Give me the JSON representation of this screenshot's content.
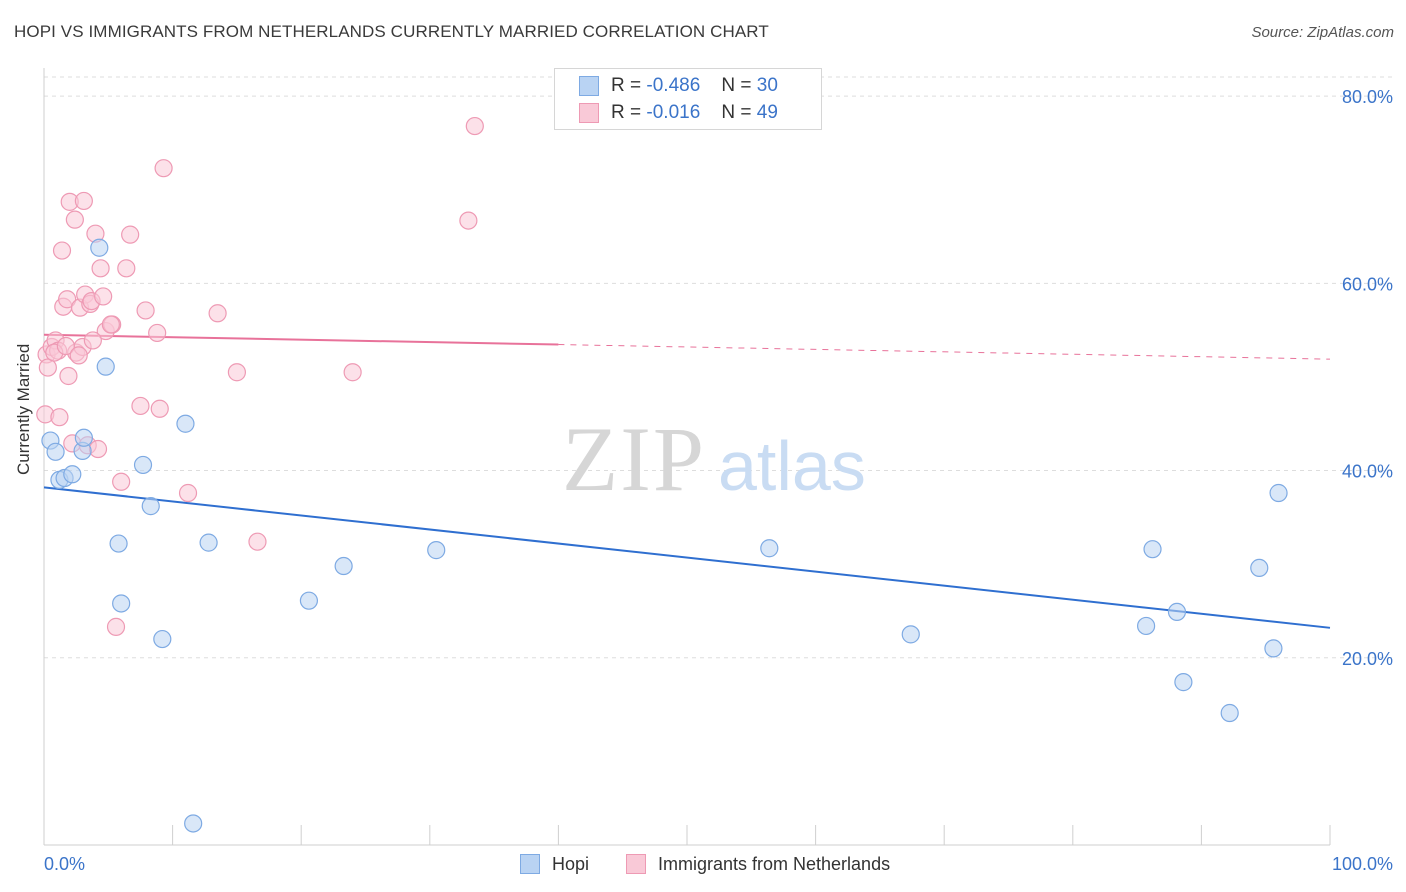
{
  "header": {
    "title": "HOPI VS IMMIGRANTS FROM NETHERLANDS CURRENTLY MARRIED CORRELATION CHART",
    "source": "Source: ZipAtlas.com"
  },
  "watermark": {
    "zip": "ZIP",
    "atlas": "atlas"
  },
  "legend_top": {
    "rows": [
      {
        "r_label": "R =",
        "r_value": "-0.486",
        "n_label": "N =",
        "n_value": "30",
        "color": "#a9c8f0",
        "border": "#7eaae3"
      },
      {
        "r_label": "R =",
        "r_value": "-0.016",
        "n_label": "N =",
        "n_value": "49",
        "color": "#f7c3d2",
        "border": "#ee9ab4"
      }
    ]
  },
  "chart_data": {
    "type": "scatter",
    "title": "HOPI VS IMMIGRANTS FROM NETHERLANDS CURRENTLY MARRIED CORRELATION CHART",
    "xlabel": "",
    "ylabel": "Currently Married",
    "xlim": [
      0,
      100
    ],
    "ylim": [
      0,
      83
    ],
    "x_tick_labels": [
      "0.0%",
      "100.0%"
    ],
    "y_ticks": [
      20,
      40,
      60,
      80
    ],
    "y_tick_labels": [
      "20.0%",
      "40.0%",
      "60.0%",
      "80.0%"
    ],
    "grid": true,
    "legend_position": "bottom",
    "series": [
      {
        "name": "Hopi",
        "color": "#7eaae3",
        "fill": "#b9d3f3",
        "line_color": "#2f6fd0",
        "trend": {
          "x": [
            0,
            100
          ],
          "y": [
            38.2,
            23.2
          ],
          "solid_until": 100
        },
        "x": [
          0.5,
          0.9,
          1.2,
          1.6,
          2.2,
          3.0,
          3.1,
          4.3,
          4.8,
          5.8,
          6.0,
          7.7,
          8.3,
          9.2,
          11.0,
          11.6,
          12.8,
          20.6,
          23.3,
          30.5,
          56.4,
          67.4,
          85.7,
          86.2,
          88.1,
          88.6,
          92.2,
          94.5,
          95.6,
          96.0
        ],
        "y": [
          43.2,
          42.0,
          39.0,
          39.2,
          39.6,
          42.1,
          43.5,
          63.8,
          51.1,
          32.2,
          25.8,
          40.6,
          36.2,
          22.0,
          45.0,
          2.3,
          32.3,
          26.1,
          29.8,
          31.5,
          31.7,
          22.5,
          23.4,
          31.6,
          24.9,
          17.4,
          14.1,
          29.6,
          21.0,
          37.6
        ]
      },
      {
        "name": "Immigrants from Netherlands",
        "color": "#ee9ab4",
        "fill": "#f9c9d7",
        "line_color": "#e8729a",
        "trend": {
          "x": [
            0,
            100
          ],
          "y": [
            54.5,
            51.9
          ],
          "solid_until": 40
        },
        "x": [
          0.1,
          0.2,
          0.3,
          0.6,
          0.9,
          1.1,
          1.2,
          1.4,
          1.5,
          1.8,
          1.9,
          2.0,
          2.2,
          2.4,
          2.5,
          2.8,
          3.0,
          3.1,
          3.2,
          3.4,
          3.6,
          3.7,
          4.0,
          4.2,
          4.4,
          4.6,
          4.8,
          5.3,
          5.6,
          6.0,
          6.4,
          6.7,
          7.5,
          7.9,
          8.8,
          9.0,
          9.3,
          11.2,
          13.5,
          15.0,
          16.6,
          24.0,
          33.0,
          33.5,
          0.8,
          1.7,
          2.7,
          3.8,
          5.2
        ],
        "y": [
          46.0,
          52.4,
          51.0,
          53.2,
          53.9,
          52.8,
          45.7,
          63.5,
          57.5,
          58.3,
          50.1,
          68.7,
          42.9,
          66.8,
          52.6,
          57.4,
          53.2,
          68.8,
          58.8,
          42.7,
          57.8,
          58.1,
          65.3,
          42.3,
          61.6,
          58.6,
          54.9,
          55.6,
          23.3,
          38.8,
          61.6,
          65.2,
          46.9,
          57.1,
          54.7,
          46.6,
          72.3,
          37.6,
          56.8,
          50.5,
          32.4,
          50.5,
          66.7,
          76.8,
          52.6,
          53.3,
          52.3,
          53.9,
          55.6
        ]
      }
    ]
  },
  "legend_bottom": {
    "items": [
      {
        "label": "Hopi",
        "color": "#b9d3f3",
        "border": "#7eaae3"
      },
      {
        "label": "Immigrants from Netherlands",
        "color": "#f9c9d7",
        "border": "#ee9ab4"
      }
    ]
  },
  "colors": {
    "axis_text": "#3b74c9",
    "grid": "#dddddd"
  }
}
